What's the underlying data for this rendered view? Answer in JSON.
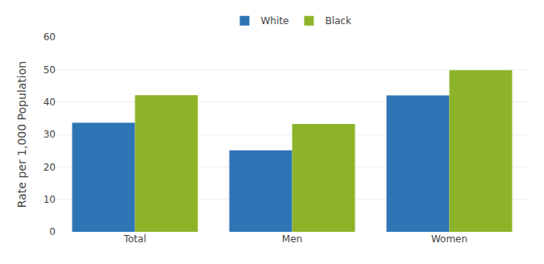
{
  "chart_data": {
    "type": "bar",
    "categories": [
      "Total",
      "Men",
      "Women"
    ],
    "series": [
      {
        "name": "White",
        "color": "#2E75B6",
        "values": [
          33.6,
          25.1,
          42.0
        ]
      },
      {
        "name": "Black",
        "color": "#8DB429",
        "values": [
          42.1,
          33.2,
          49.8
        ]
      }
    ],
    "ylabel": "Rate per 1,000 Population",
    "ylim": [
      0,
      60
    ],
    "yticks": [
      0,
      10,
      20,
      30,
      40,
      50,
      60
    ],
    "grid": true,
    "legend": "upper center"
  }
}
